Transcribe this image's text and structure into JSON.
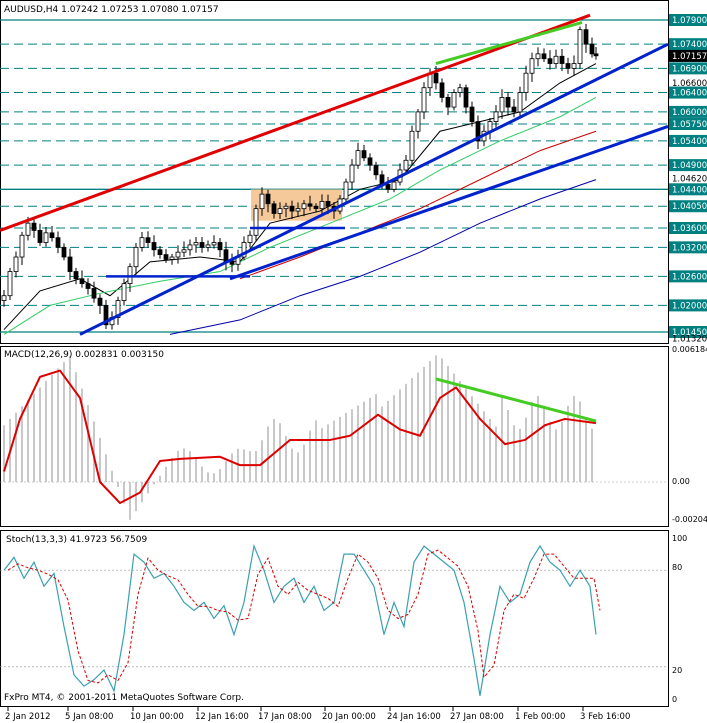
{
  "main": {
    "title": "AUDUSD,H4  1.07242 1.07253 1.07080 1.07157",
    "price_labels": [
      {
        "text": "1.07900",
        "price": 1.079,
        "box": true
      },
      {
        "text": "1.07400",
        "price": 1.074,
        "box": true
      },
      {
        "text": "1.07157",
        "price": 1.07157,
        "box": true,
        "current": true
      },
      {
        "text": "1.06900",
        "price": 1.069,
        "box": true
      },
      {
        "text": "1.06600",
        "price": 1.066,
        "box": false
      },
      {
        "text": "1.06400",
        "price": 1.064,
        "box": true
      },
      {
        "text": "1.06000",
        "price": 1.06,
        "box": true
      },
      {
        "text": "1.05750",
        "price": 1.0575,
        "box": true
      },
      {
        "text": "1.05400",
        "price": 1.054,
        "box": true
      },
      {
        "text": "1.04900",
        "price": 1.049,
        "box": true
      },
      {
        "text": "1.04620",
        "price": 1.0462,
        "box": false
      },
      {
        "text": "1.04400",
        "price": 1.044,
        "box": true
      },
      {
        "text": "1.04050",
        "price": 1.0405,
        "box": true
      },
      {
        "text": "1.03600",
        "price": 1.036,
        "box": true
      },
      {
        "text": "1.03200",
        "price": 1.032,
        "box": true
      },
      {
        "text": "1.02600",
        "price": 1.026,
        "box": true
      },
      {
        "text": "1.02000",
        "price": 1.02,
        "box": true
      },
      {
        "text": "1.01450",
        "price": 1.0145,
        "box": true
      },
      {
        "text": "1.01320",
        "price": 1.0132,
        "box": false
      }
    ],
    "solid_levels": [
      1.079,
      1.044,
      1.0145
    ],
    "dashed_levels": [
      1.074,
      1.069,
      1.064,
      1.06,
      1.0575,
      1.054,
      1.049,
      1.0405,
      1.036,
      1.032,
      1.026,
      1.02
    ]
  },
  "macd": {
    "title": "MACD(12,26,9) 0.002831 0.003150",
    "scale_labels": [
      "0.006184",
      "0.00",
      "-0.002041"
    ]
  },
  "stoch": {
    "title": "Stoch(13,3,3) 41.9723 56.7509",
    "scale_labels": [
      "100",
      "80",
      "20",
      "0"
    ]
  },
  "copyright": "FxPro MT4, © 2001-2011 MetaQuotes Software Corp.",
  "time_axis": [
    "2 Jan 2012",
    "5 Jan 08:00",
    "10 Jan 00:00",
    "12 Jan 16:00",
    "17 Jan 08:00",
    "20 Jan 00:00",
    "24 Jan 16:00",
    "27 Jan 08:00",
    "1 Feb 00:00",
    "3 Feb 16:00"
  ],
  "colors": {
    "grid_solid": "#008080",
    "grid_dash": "#008080",
    "candle": "#000000",
    "resistance": "#e00000",
    "support": "#0022cc",
    "divergence": "#44cc22",
    "box": "#f5c08a",
    "ma_fast": "#000000",
    "ma_mid": "#33cc66",
    "ma_slow": "#cc0000",
    "ma_long": "#0000aa",
    "macd_signal": "#dd0000",
    "macd_hist": "#bbbbbb",
    "stoch_main": "#3aa0b0",
    "stoch_signal": "#dd0000"
  }
}
